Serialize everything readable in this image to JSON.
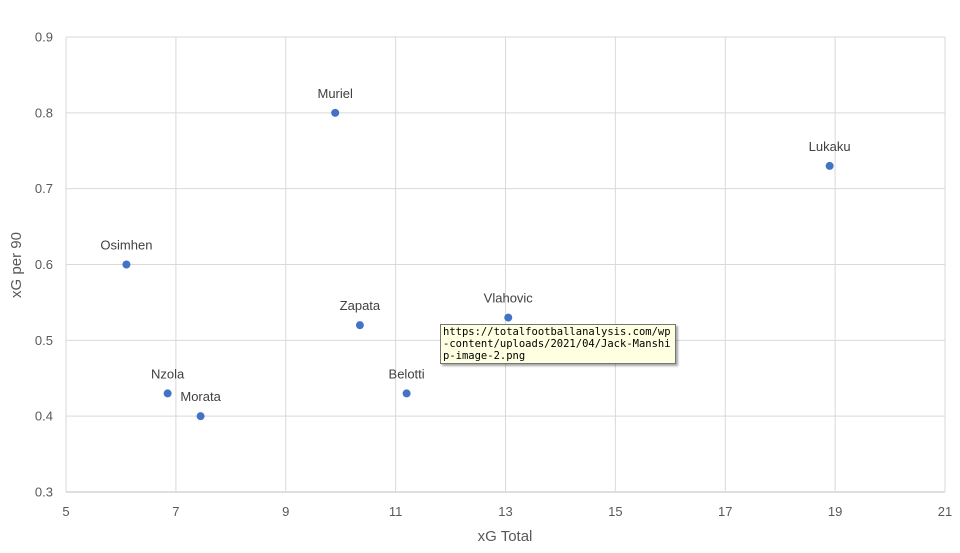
{
  "chart_data": {
    "type": "scatter",
    "title": "",
    "xlabel": "xG Total",
    "ylabel": "xG per 90",
    "xlim": [
      5,
      21
    ],
    "ylim": [
      0.3,
      0.9
    ],
    "xticks": [
      5,
      7,
      9,
      11,
      13,
      15,
      17,
      19,
      21
    ],
    "yticks": [
      0.3,
      0.4,
      0.5,
      0.6,
      0.7,
      0.8,
      0.9
    ],
    "ytick_labels": [
      "0.3",
      "0.4",
      "0.5",
      "0.6",
      "0.7",
      "0.8",
      "0.9"
    ],
    "grid": true,
    "marker_color": "#4472c4",
    "points": [
      {
        "label": "Muriel",
        "x": 9.9,
        "y": 0.8
      },
      {
        "label": "Lukaku",
        "x": 18.9,
        "y": 0.73
      },
      {
        "label": "Osimhen",
        "x": 6.1,
        "y": 0.6
      },
      {
        "label": "Zapata",
        "x": 10.35,
        "y": 0.52
      },
      {
        "label": "Vlahovic",
        "x": 13.05,
        "y": 0.53
      },
      {
        "label": "Nzola",
        "x": 6.85,
        "y": 0.43
      },
      {
        "label": "Morata",
        "x": 7.45,
        "y": 0.4
      },
      {
        "label": "Belotti",
        "x": 11.2,
        "y": 0.43
      }
    ]
  },
  "tooltip": {
    "text": "https://totalfootballanalysis.com/wp-content/uploads/2021/04/Jack-Manship-image-2.png"
  }
}
